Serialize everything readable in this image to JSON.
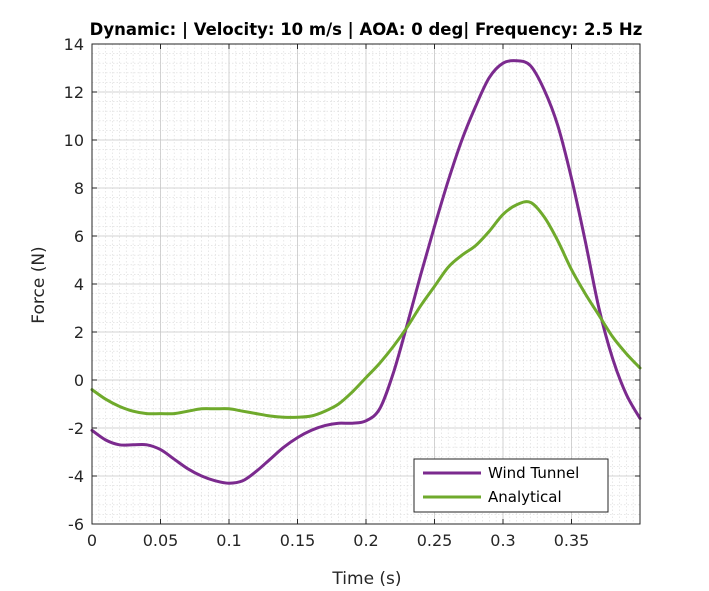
{
  "chart_data": {
    "type": "line",
    "title": "Dynamic:  | Velocity: 10 m/s | AOA: 0 deg| Frequency: 2.5 Hz",
    "xlabel": "Time (s)",
    "ylabel": "Force (N)",
    "xlim": [
      0,
      0.4
    ],
    "ylim": [
      -6,
      14
    ],
    "xticks": [
      0,
      0.05,
      0.1,
      0.15,
      0.2,
      0.25,
      0.3,
      0.35
    ],
    "xtick_labels": [
      "0",
      "0.05",
      "0.1",
      "0.15",
      "0.2",
      "0.25",
      "0.3",
      "0.35"
    ],
    "yticks": [
      -6,
      -4,
      -2,
      0,
      2,
      4,
      6,
      8,
      10,
      12,
      14
    ],
    "ytick_labels": [
      "-6",
      "-4",
      "-2",
      "0",
      "2",
      "4",
      "6",
      "8",
      "10",
      "12",
      "14"
    ],
    "grid": "major and minor",
    "legend_position": "bottom-right",
    "series": [
      {
        "name": "Wind Tunnel",
        "color": "#7B2A8E",
        "x": [
          0,
          0.01,
          0.02,
          0.03,
          0.04,
          0.05,
          0.06,
          0.07,
          0.08,
          0.09,
          0.1,
          0.11,
          0.12,
          0.13,
          0.14,
          0.15,
          0.16,
          0.17,
          0.18,
          0.19,
          0.2,
          0.21,
          0.22,
          0.23,
          0.24,
          0.25,
          0.26,
          0.27,
          0.28,
          0.29,
          0.3,
          0.31,
          0.32,
          0.33,
          0.34,
          0.35,
          0.36,
          0.37,
          0.38,
          0.39,
          0.4
        ],
        "y": [
          -2.1,
          -2.5,
          -2.7,
          -2.7,
          -2.7,
          -2.9,
          -3.3,
          -3.7,
          -4.0,
          -4.2,
          -4.3,
          -4.2,
          -3.8,
          -3.3,
          -2.8,
          -2.4,
          -2.1,
          -1.9,
          -1.8,
          -1.8,
          -1.7,
          -1.2,
          0.3,
          2.3,
          4.4,
          6.4,
          8.3,
          10.0,
          11.4,
          12.6,
          13.2,
          13.3,
          13.1,
          12.1,
          10.6,
          8.4,
          5.8,
          3.0,
          0.9,
          -0.6,
          -1.6
        ]
      },
      {
        "name": "Analytical",
        "color": "#6FAA2C",
        "x": [
          0,
          0.01,
          0.02,
          0.03,
          0.04,
          0.05,
          0.06,
          0.07,
          0.08,
          0.09,
          0.1,
          0.11,
          0.12,
          0.13,
          0.14,
          0.15,
          0.16,
          0.17,
          0.18,
          0.19,
          0.2,
          0.21,
          0.22,
          0.23,
          0.24,
          0.25,
          0.26,
          0.27,
          0.28,
          0.29,
          0.3,
          0.31,
          0.32,
          0.33,
          0.34,
          0.35,
          0.36,
          0.37,
          0.38,
          0.39,
          0.4
        ],
        "y": [
          -0.4,
          -0.8,
          -1.1,
          -1.3,
          -1.4,
          -1.4,
          -1.4,
          -1.3,
          -1.2,
          -1.2,
          -1.2,
          -1.3,
          -1.4,
          -1.5,
          -1.55,
          -1.55,
          -1.5,
          -1.3,
          -1.0,
          -0.5,
          0.1,
          0.7,
          1.4,
          2.2,
          3.1,
          3.9,
          4.7,
          5.2,
          5.6,
          6.2,
          6.9,
          7.3,
          7.4,
          6.8,
          5.8,
          4.6,
          3.6,
          2.7,
          1.8,
          1.1,
          0.5
        ]
      }
    ]
  }
}
